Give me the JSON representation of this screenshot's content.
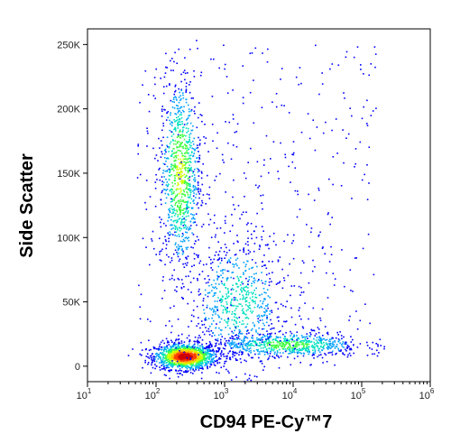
{
  "chart_data": {
    "type": "scatter",
    "subtype": "flow-cytometry density dot plot",
    "xlabel": "CD94 PE-Cy™7",
    "ylabel": "Side Scatter",
    "x_scale": "log",
    "xlim": [
      10,
      1000000
    ],
    "ylim": [
      -12000,
      262144
    ],
    "x_ticks": [
      {
        "value": 10,
        "base": "10",
        "exp": "1"
      },
      {
        "value": 100,
        "base": "10",
        "exp": "2"
      },
      {
        "value": 1000,
        "base": "10",
        "exp": "3"
      },
      {
        "value": 10000,
        "base": "10",
        "exp": "4"
      },
      {
        "value": 100000,
        "base": "10",
        "exp": "5"
      },
      {
        "value": 1000000,
        "base": "10",
        "exp": "6"
      }
    ],
    "y_ticks": [
      {
        "value": 0,
        "label": "0"
      },
      {
        "value": 50000,
        "label": "50K"
      },
      {
        "value": 100000,
        "label": "100K"
      },
      {
        "value": 150000,
        "label": "150K"
      },
      {
        "value": 200000,
        "label": "200K"
      },
      {
        "value": 250000,
        "label": "250K"
      }
    ],
    "grid": false,
    "colormap": [
      "#0000ff",
      "#00a0ff",
      "#00e0c0",
      "#40ff40",
      "#d0ff00",
      "#ffc000",
      "#ff4000",
      "#d00000"
    ],
    "populations": [
      {
        "x_center": 260,
        "y_center": 8000,
        "x_spread_decades": 0.22,
        "y_spread": 5000,
        "density": 1.0
      },
      {
        "x_center": 220,
        "y_center": 150000,
        "x_spread_decades": 0.15,
        "y_spread": 38000,
        "density": 0.55
      },
      {
        "x_center": 8000,
        "y_center": 17000,
        "x_spread_decades": 0.55,
        "y_spread": 5000,
        "density": 0.45
      },
      {
        "x_center": 1500,
        "y_center": 50000,
        "x_spread_decades": 0.35,
        "y_spread": 25000,
        "density": 0.35
      }
    ]
  }
}
